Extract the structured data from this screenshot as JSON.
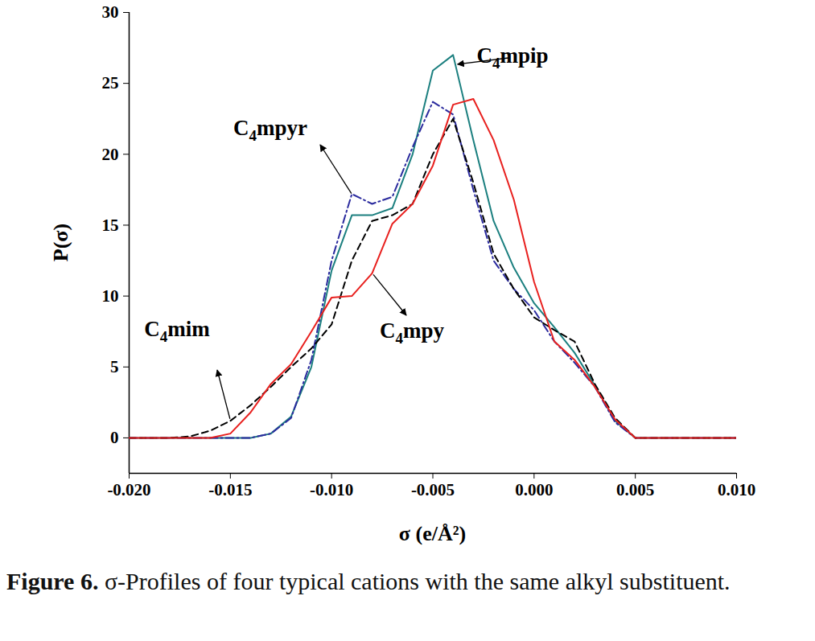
{
  "chart_data": {
    "type": "line",
    "caption_label": "Figure 6.",
    "caption": "σ-Profiles of four typical cations with the same alkyl substituent.",
    "x_label": "σ (e/Å²)",
    "y_label": "P(σ)",
    "xlim": [
      -0.02,
      0.01
    ],
    "ylim": [
      -2.5,
      30
    ],
    "xticks": [
      {
        "value": -0.02,
        "label": "-0.020"
      },
      {
        "value": -0.015,
        "label": "-0.015"
      },
      {
        "value": -0.01,
        "label": "-0.010"
      },
      {
        "value": -0.005,
        "label": "-0.005"
      },
      {
        "value": 0,
        "label": "0.000"
      },
      {
        "value": 0.005,
        "label": "0.005"
      },
      {
        "value": 0.01,
        "label": "0.010"
      }
    ],
    "yticks": [
      0,
      5,
      10,
      15,
      20,
      25,
      30
    ],
    "grid": false,
    "x": [
      -0.02,
      -0.019,
      -0.018,
      -0.017,
      -0.016,
      -0.015,
      -0.014,
      -0.013,
      -0.012,
      -0.011,
      -0.01,
      -0.009,
      -0.008,
      -0.007,
      -0.006,
      -0.005,
      -0.004,
      -0.003,
      -0.002,
      -0.001,
      0,
      0.001,
      0.002,
      0.003,
      0.004,
      0.005,
      0.006,
      0.007,
      0.008,
      0.009,
      0.01
    ],
    "series": [
      {
        "name": "C4mpip",
        "color": "#1b7f7f",
        "line_style": "solid",
        "values": [
          0,
          0,
          0,
          0,
          0,
          0,
          0,
          0.3,
          1.5,
          5,
          11.8,
          15.7,
          15.7,
          16.2,
          20,
          25.9,
          27,
          21,
          15.3,
          12,
          9.5,
          7.8,
          6,
          3.7,
          1.2,
          0,
          0,
          0,
          0,
          0,
          0
        ]
      },
      {
        "name": "C4mpyr",
        "color": "#2b2b9e",
        "line_style": "dashdot",
        "values": [
          0,
          0,
          0,
          0,
          0,
          0,
          0,
          0.3,
          1.4,
          5.5,
          12.5,
          17.2,
          16.5,
          17,
          20.5,
          23.7,
          22.8,
          17.5,
          12.5,
          10.5,
          9,
          6.8,
          5.3,
          3.6,
          1.1,
          0,
          0,
          0,
          0,
          0,
          0
        ]
      },
      {
        "name": "C4mim",
        "color": "#000000",
        "line_style": "dashed",
        "values": [
          0,
          0,
          0,
          0.1,
          0.5,
          1.2,
          2.3,
          3.6,
          5,
          6.3,
          8,
          12.5,
          15.3,
          15.7,
          16.5,
          20,
          22.5,
          18,
          13,
          10.5,
          8.5,
          7.6,
          6.8,
          3.8,
          1.4,
          0,
          0,
          0,
          0,
          0,
          0
        ]
      },
      {
        "name": "C4mpy",
        "color": "#e8201e",
        "line_style": "solid",
        "values": [
          0,
          0,
          0,
          0,
          0,
          0.3,
          1.8,
          3.8,
          5.2,
          7.5,
          9.9,
          10,
          11.6,
          15.1,
          16.5,
          19.2,
          23.5,
          23.9,
          21,
          16.8,
          11,
          6.8,
          5.5,
          3.6,
          1.3,
          0,
          0,
          0,
          0,
          0,
          0
        ]
      }
    ]
  }
}
